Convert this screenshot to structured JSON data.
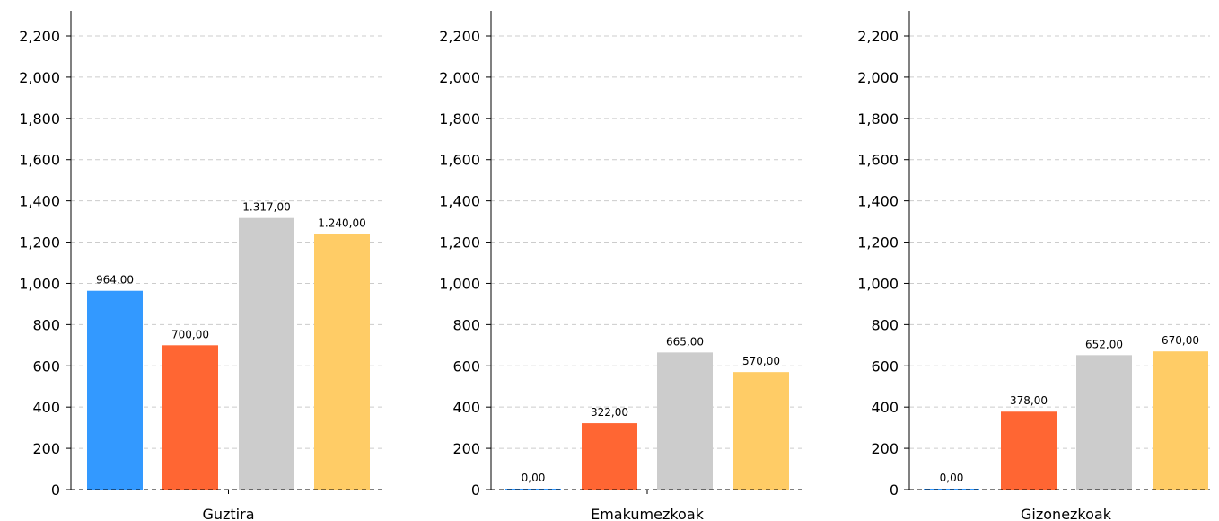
{
  "chart_data": [
    {
      "type": "bar",
      "category": "Guztira",
      "values": [
        964,
        700,
        1317,
        1240
      ],
      "value_labels": [
        "964,00",
        "700,00",
        "1.317,00",
        "1.240,00"
      ],
      "colors": [
        "#3399ff",
        "#ff6633",
        "#cccccc",
        "#ffcc66"
      ],
      "ylim": [
        0,
        2300
      ],
      "yticks": [
        0,
        200,
        400,
        600,
        800,
        1000,
        1200,
        1400,
        1600,
        1800,
        2000,
        2200
      ],
      "ytick_labels": [
        "0",
        "200",
        "400",
        "600",
        "800",
        "1,000",
        "1,200",
        "1,400",
        "1,600",
        "1,800",
        "2,000",
        "2,200"
      ],
      "grid": true
    },
    {
      "type": "bar",
      "category": "Emakumezkoak",
      "values": [
        0,
        322,
        665,
        570
      ],
      "value_labels": [
        "0,00",
        "322,00",
        "665,00",
        "570,00"
      ],
      "colors": [
        "#3399ff",
        "#ff6633",
        "#cccccc",
        "#ffcc66"
      ],
      "ylim": [
        0,
        2300
      ],
      "yticks": [
        0,
        200,
        400,
        600,
        800,
        1000,
        1200,
        1400,
        1600,
        1800,
        2000,
        2200
      ],
      "ytick_labels": [
        "0",
        "200",
        "400",
        "600",
        "800",
        "1,000",
        "1,200",
        "1,400",
        "1,600",
        "1,800",
        "2,000",
        "2,200"
      ],
      "grid": true
    },
    {
      "type": "bar",
      "category": "Gizonezkoak",
      "values": [
        0,
        378,
        652,
        670
      ],
      "value_labels": [
        "0,00",
        "378,00",
        "652,00",
        "670,00"
      ],
      "colors": [
        "#3399ff",
        "#ff6633",
        "#cccccc",
        "#ffcc66"
      ],
      "ylim": [
        0,
        2300
      ],
      "yticks": [
        0,
        200,
        400,
        600,
        800,
        1000,
        1200,
        1400,
        1600,
        1800,
        2000,
        2200
      ],
      "ytick_labels": [
        "0",
        "200",
        "400",
        "600",
        "800",
        "1,000",
        "1,200",
        "1,400",
        "1,600",
        "1,800",
        "2,000",
        "2,200"
      ],
      "grid": true
    }
  ]
}
